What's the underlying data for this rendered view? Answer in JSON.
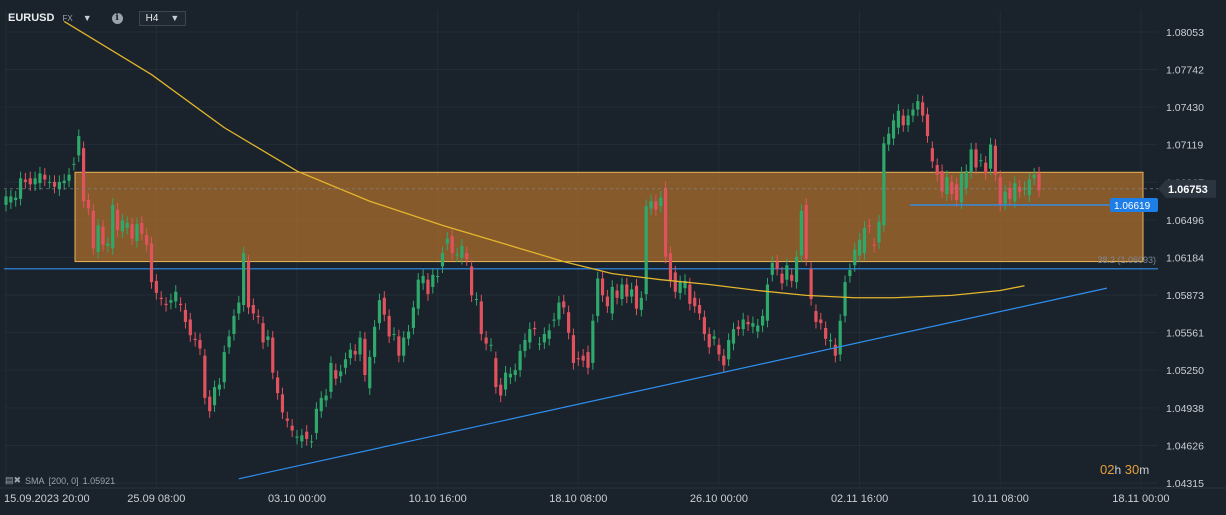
{
  "header": {
    "symbol": "EURUSD",
    "market": "FX",
    "timeframe": "H4",
    "info_icon": "info-icon",
    "dropdown_icon": "caret-down-icon"
  },
  "indicator": {
    "icon": "settings-icon",
    "label": "SMA",
    "params": "[200, 0]",
    "value": "1.05921"
  },
  "timer": {
    "hours": "02",
    "h_unit": "h",
    "minutes": "30",
    "m_unit": "m"
  },
  "colors": {
    "background": "#1a222b",
    "bullish": "#2ea86b",
    "bearish": "#e0525e",
    "sma": "#e3b52d",
    "zone_fill": "#a66a2b",
    "zone_border": "#e8b45a",
    "trendline": "#2f8ff0"
  },
  "chart_data": {
    "type": "candlestick",
    "y_ticks": [
      "1.08053",
      "1.07742",
      "1.07430",
      "1.07119",
      "1.06807",
      "1.06496",
      "1.06184",
      "1.05873",
      "1.05561",
      "1.05250",
      "1.04938",
      "1.04626",
      "1.04315"
    ],
    "ylim": [
      1.04315,
      1.0821
    ],
    "x_ticks": [
      {
        "label": "15.09.2023  20:00",
        "index": 0
      },
      {
        "label": "25.09  08:00",
        "index": 31
      },
      {
        "label": "03.10  00:00",
        "index": 60
      },
      {
        "label": "10.10  16:00",
        "index": 89
      },
      {
        "label": "18.10  08:00",
        "index": 118
      },
      {
        "label": "26.10  00:00",
        "index": 147
      },
      {
        "label": "02.11  16:00",
        "index": 176
      },
      {
        "label": "10.11  08:00",
        "index": 205
      },
      {
        "label": "18.11  00:00",
        "index": 234
      }
    ],
    "current_price": "1.06753",
    "horizontal_level": "1.06619",
    "fib_label": "38.2 (1.06093)",
    "series": [
      {
        "name": "SMA",
        "points": [
          [
            12,
            1.0814
          ],
          [
            30,
            1.077
          ],
          [
            45,
            1.0726
          ],
          [
            60,
            1.069
          ],
          [
            75,
            1.0665
          ],
          [
            90,
            1.0645
          ],
          [
            105,
            1.0627
          ],
          [
            115,
            1.0615
          ],
          [
            125,
            1.0605
          ],
          [
            135,
            1.06
          ],
          [
            145,
            1.0596
          ],
          [
            155,
            1.0591
          ],
          [
            165,
            1.0587
          ],
          [
            175,
            1.0585
          ],
          [
            183,
            1.0585
          ],
          [
            195,
            1.0587
          ],
          [
            205,
            1.0591
          ],
          [
            210,
            1.0595
          ]
        ]
      }
    ],
    "zone": {
      "low": 1.0615,
      "high": 1.0689
    },
    "support_line": 1.0609,
    "trendline": [
      [
        48,
        1.0435
      ],
      [
        227,
        1.0593
      ]
    ],
    "candles": [
      [
        1.0662,
        1.0669
      ],
      [
        1.0664,
        1.0669
      ],
      [
        1.0666,
        1.0668
      ],
      [
        1.0667,
        1.0684
      ],
      [
        1.0683,
        1.0681
      ],
      [
        1.0684,
        1.0679
      ],
      [
        1.0679,
        1.0684
      ],
      [
        1.068,
        1.0688
      ],
      [
        1.0687,
        1.0683
      ],
      [
        1.0681,
        1.0681
      ],
      [
        1.0681,
        1.0677
      ],
      [
        1.0675,
        1.0681
      ],
      [
        1.068,
        1.0682
      ],
      [
        1.0682,
        1.0687
      ],
      [
        1.0696,
        1.0696
      ],
      [
        1.0703,
        1.0719
      ],
      [
        1.0709,
        1.0665
      ],
      [
        1.0666,
        1.0659
      ],
      [
        1.0657,
        1.0626
      ],
      [
        1.0623,
        1.0645
      ],
      [
        1.0644,
        1.0629
      ],
      [
        1.0628,
        1.063
      ],
      [
        1.0626,
        1.0662
      ],
      [
        1.0658,
        1.0641
      ],
      [
        1.064,
        1.0649
      ],
      [
        1.0643,
        1.0647
      ],
      [
        1.0646,
        1.0634
      ],
      [
        1.0632,
        1.0646
      ],
      [
        1.0647,
        1.0638
      ],
      [
        1.0637,
        1.0629
      ],
      [
        1.063,
        1.0598
      ],
      [
        1.0599,
        1.0589
      ],
      [
        1.0585,
        1.0584
      ],
      [
        1.058,
        1.0579
      ],
      [
        1.0581,
        1.0583
      ],
      [
        1.0582,
        1.059
      ],
      [
        1.058,
        1.0579
      ],
      [
        1.0575,
        1.0565
      ],
      [
        1.0567,
        1.0554
      ],
      [
        1.0551,
        1.055
      ],
      [
        1.055,
        1.0543
      ],
      [
        1.0537,
        1.0502
      ],
      [
        1.0503,
        1.0491
      ],
      [
        1.0496,
        1.0511
      ],
      [
        1.0509,
        1.0513
      ],
      [
        1.0515,
        1.054
      ],
      [
        1.0544,
        1.0553
      ],
      [
        1.0555,
        1.057
      ],
      [
        1.0572,
        1.0581
      ],
      [
        1.0579,
        1.0622
      ],
      [
        1.0615,
        1.0577
      ],
      [
        1.0579,
        1.0572
      ],
      [
        1.057,
        1.0569
      ],
      [
        1.0564,
        1.0548
      ],
      [
        1.055,
        1.0553
      ],
      [
        1.0552,
        1.0523
      ],
      [
        1.0519,
        1.0506
      ],
      [
        1.0505,
        1.049
      ],
      [
        1.0485,
        1.0483
      ],
      [
        1.0479,
        1.0475
      ],
      [
        1.0469,
        1.047
      ],
      [
        1.0466,
        1.0471
      ],
      [
        1.0474,
        1.0468
      ],
      [
        1.0466,
        1.0466
      ],
      [
        1.0473,
        1.0493
      ],
      [
        1.0491,
        1.0502
      ],
      [
        1.05,
        1.0504
      ],
      [
        1.0507,
        1.0531
      ],
      [
        1.0525,
        1.0518
      ],
      [
        1.052,
        1.0524
      ],
      [
        1.0527,
        1.0534
      ],
      [
        1.0535,
        1.0542
      ],
      [
        1.0541,
        1.0538
      ],
      [
        1.0538,
        1.0552
      ],
      [
        1.0551,
        1.0521
      ],
      [
        1.051,
        1.0536
      ],
      [
        1.0536,
        1.0561
      ],
      [
        1.0564,
        1.0583
      ],
      [
        1.0585,
        1.0571
      ],
      [
        1.057,
        1.0553
      ],
      [
        1.0555,
        1.0555
      ],
      [
        1.0553,
        1.0537
      ],
      [
        1.0537,
        1.0552
      ],
      [
        1.0551,
        1.0557
      ],
      [
        1.056,
        1.0577
      ],
      [
        1.0576,
        1.06
      ],
      [
        1.0597,
        1.0603
      ],
      [
        1.06,
        1.0588
      ],
      [
        1.0594,
        1.0604
      ],
      [
        1.0603,
        1.0603
      ],
      [
        1.0611,
        1.0622
      ],
      [
        1.063,
        1.0634
      ],
      [
        1.0636,
        1.0622
      ],
      [
        1.062,
        1.0621
      ],
      [
        1.0618,
        1.0628
      ],
      [
        1.0622,
        1.0617
      ],
      [
        1.0611,
        1.0587
      ],
      [
        1.0584,
        1.0584
      ],
      [
        1.0582,
        1.0555
      ],
      [
        1.0552,
        1.0547
      ],
      [
        1.0546,
        1.0546
      ],
      [
        1.0535,
        1.0511
      ],
      [
        1.0513,
        1.0504
      ],
      [
        1.0509,
        1.0523
      ],
      [
        1.0519,
        1.0522
      ],
      [
        1.0521,
        1.0525
      ],
      [
        1.0525,
        1.0541
      ],
      [
        1.0541,
        1.055
      ],
      [
        1.0548,
        1.0559
      ],
      [
        1.056,
        1.0559
      ],
      [
        1.0547,
        1.0547
      ],
      [
        1.0548,
        1.0555
      ],
      [
        1.0551,
        1.0558
      ],
      [
        1.0566,
        1.0567
      ],
      [
        1.0567,
        1.0581
      ],
      [
        1.0582,
        1.0577
      ],
      [
        1.0573,
        1.0556
      ],
      [
        1.0554,
        1.0531
      ],
      [
        1.0535,
        1.0534
      ],
      [
        1.0537,
        1.0533
      ],
      [
        1.054,
        1.0527
      ],
      [
        1.0531,
        1.0566
      ],
      [
        1.057,
        1.0601
      ],
      [
        1.0601,
        1.0587
      ],
      [
        1.0586,
        1.0578
      ],
      [
        1.0572,
        1.0594
      ],
      [
        1.0591,
        1.0585
      ],
      [
        1.0584,
        1.0596
      ],
      [
        1.0596,
        1.0586
      ],
      [
        1.0586,
        1.0592
      ],
      [
        1.0595,
        1.0576
      ],
      [
        1.0575,
        1.0585
      ],
      [
        1.0588,
        1.0661
      ],
      [
        1.0659,
        1.0665
      ],
      [
        1.0665,
        1.0658
      ],
      [
        1.0661,
        1.0668
      ],
      [
        1.0676,
        1.0619
      ],
      [
        1.0622,
        1.0599
      ],
      [
        1.0606,
        1.059
      ],
      [
        1.0589,
        1.0598
      ],
      [
        1.0593,
        1.0599
      ],
      [
        1.0596,
        1.058
      ],
      [
        1.0585,
        1.0578
      ],
      [
        1.0579,
        1.0572
      ],
      [
        1.0569,
        1.0555
      ],
      [
        1.0555,
        1.0544
      ],
      [
        1.0551,
        1.0553
      ],
      [
        1.0546,
        1.0538
      ],
      [
        1.0537,
        1.0529
      ],
      [
        1.0534,
        1.055
      ],
      [
        1.0547,
        1.0559
      ],
      [
        1.0561,
        1.0559
      ],
      [
        1.0559,
        1.0567
      ],
      [
        1.0565,
        1.0563
      ],
      [
        1.0561,
        1.0564
      ],
      [
        1.0557,
        1.0562
      ],
      [
        1.0562,
        1.057
      ],
      [
        1.0566,
        1.0596
      ],
      [
        1.0604,
        1.0614
      ],
      [
        1.0615,
        1.0609
      ],
      [
        1.0605,
        1.0597
      ],
      [
        1.06,
        1.0612
      ],
      [
        1.0604,
        1.0599
      ],
      [
        1.0598,
        1.0619
      ],
      [
        1.062,
        1.0657
      ],
      [
        1.0662,
        1.0617
      ],
      [
        1.0609,
        1.0584
      ],
      [
        1.0574,
        1.0565
      ],
      [
        1.0567,
        1.0564
      ],
      [
        1.056,
        1.0551
      ],
      [
        1.0549,
        1.055
      ],
      [
        1.0546,
        1.0537
      ],
      [
        1.0538,
        1.0566
      ],
      [
        1.057,
        1.0598
      ],
      [
        1.0603,
        1.0608
      ],
      [
        1.0612,
        1.0625
      ],
      [
        1.062,
        1.0633
      ],
      [
        1.0622,
        1.0643
      ],
      [
        1.0645,
        1.0644
      ],
      [
        1.0629,
        1.0628
      ],
      [
        1.0631,
        1.0648
      ],
      [
        1.0645,
        1.0713
      ],
      [
        1.0712,
        1.0721
      ],
      [
        1.0717,
        1.0732
      ],
      [
        1.0726,
        1.074
      ],
      [
        1.0736,
        1.0728
      ],
      [
        1.0728,
        1.0736
      ],
      [
        1.0736,
        1.0741
      ],
      [
        1.0741,
        1.0748
      ],
      [
        1.0747,
        1.0736
      ],
      [
        1.0737,
        1.0719
      ],
      [
        1.0709,
        1.0698
      ],
      [
        1.0695,
        1.0687
      ],
      [
        1.069,
        1.0673
      ],
      [
        1.0671,
        1.0685
      ],
      [
        1.0681,
        1.0671
      ],
      [
        1.0679,
        1.0666
      ],
      [
        1.0664,
        1.0688
      ],
      [
        1.0676,
        1.069
      ],
      [
        1.0689,
        1.0708
      ],
      [
        1.0708,
        1.0693
      ],
      [
        1.0699,
        1.0699
      ],
      [
        1.0697,
        1.0688
      ],
      [
        1.0692,
        1.0712
      ],
      [
        1.0711,
        1.0687
      ],
      [
        1.0685,
        1.0662
      ],
      [
        1.0663,
        1.0673
      ],
      [
        1.0676,
        1.0667
      ],
      [
        1.0665,
        1.068
      ],
      [
        1.0677,
        1.0673
      ],
      [
        1.0675,
        1.0676
      ],
      [
        1.067,
        1.0683
      ],
      [
        1.0684,
        1.0687
      ],
      [
        1.0688,
        1.0674
      ]
    ]
  }
}
